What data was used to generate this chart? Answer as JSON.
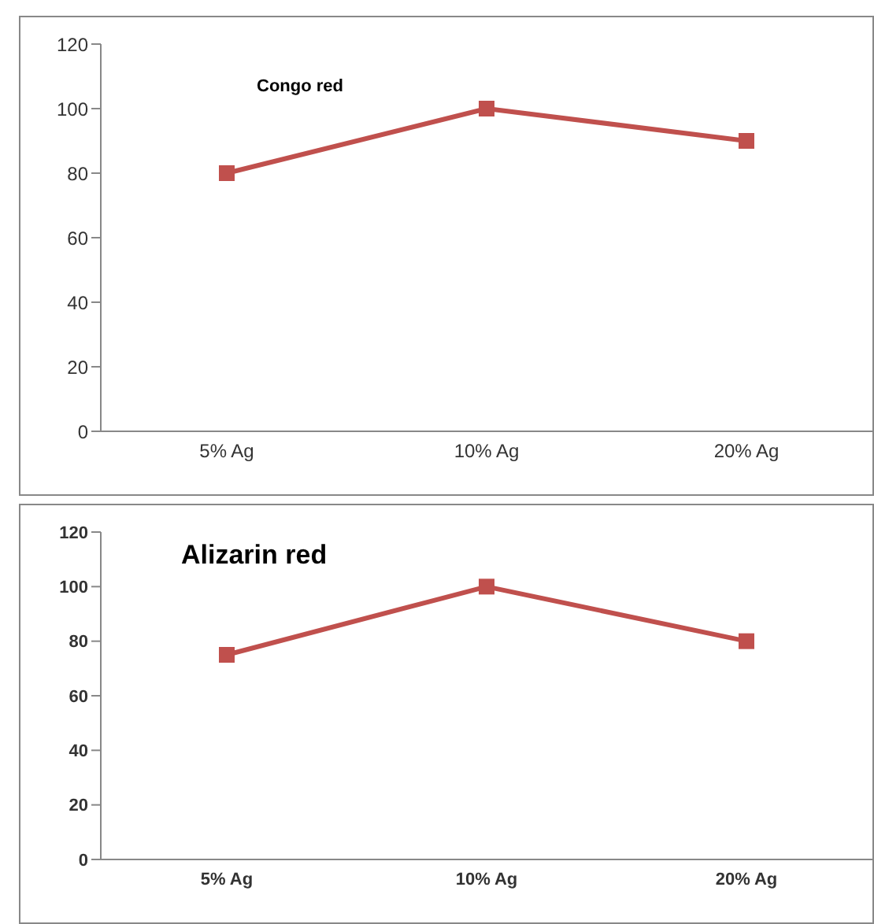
{
  "chart_data": [
    {
      "type": "line",
      "title": "Congo red",
      "categories": [
        "5% Ag",
        "10% Ag",
        "20% Ag"
      ],
      "series": [
        {
          "color": "#c0504d",
          "values": [
            80,
            100,
            90
          ]
        }
      ],
      "ylim": [
        0,
        120
      ],
      "yticks": [
        0,
        20,
        40,
        60,
        80,
        100,
        120
      ],
      "grid": false,
      "legend": false,
      "marker": "square"
    },
    {
      "type": "line",
      "title": "Alizarin red",
      "categories": [
        "5% Ag",
        "10% Ag",
        "20% Ag"
      ],
      "series": [
        {
          "color": "#c0504d",
          "values": [
            75,
            100,
            80
          ]
        }
      ],
      "ylim": [
        0,
        120
      ],
      "yticks": [
        0,
        20,
        40,
        60,
        80,
        100,
        120
      ],
      "grid": false,
      "legend": false,
      "marker": "square"
    }
  ]
}
